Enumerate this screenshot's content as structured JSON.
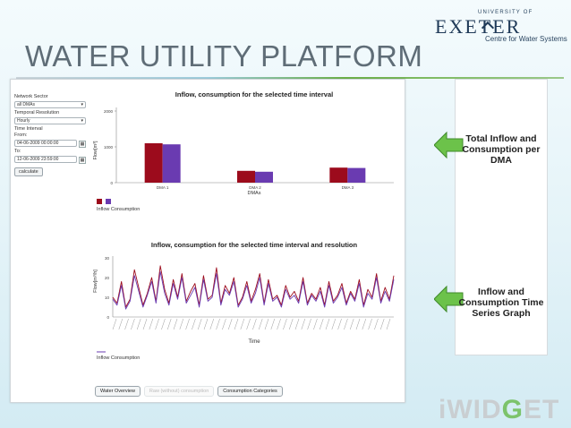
{
  "slide": {
    "title": "WATER UTILITY PLATFORM"
  },
  "logo": {
    "university": "UNIVERSITY OF",
    "name": "EXETER",
    "unit": "Centre for Water Systems"
  },
  "sidebar": {
    "network_sector_label": "Network Sector",
    "network_sector_value": "all DMAs",
    "temporal_resolution_label": "Temporal Resolution",
    "temporal_resolution_value": "Hourly",
    "time_interval_label": "Time Interval",
    "from_label": "From:",
    "from_value": "04-06-2009 00:00:00",
    "to_label": "To:",
    "to_value": "12-06-2009 23:59:00",
    "calculate_label": "calculate"
  },
  "chart_data": [
    {
      "type": "bar",
      "title": "Inflow, consumption for the selected time interval",
      "categories": [
        "DMA 1",
        "DMA 2",
        "DMA 3"
      ],
      "series": [
        {
          "name": "Inflow",
          "values": [
            1100,
            330,
            420
          ],
          "color": "#9c0b1c"
        },
        {
          "name": "Consumption",
          "values": [
            1070,
            305,
            410
          ],
          "color": "#6a3bb1"
        }
      ],
      "xlabel": "DMAs",
      "ylabel": "Flow[m³]",
      "ylim": [
        0,
        2000
      ],
      "yticks": [
        "2000",
        "1000",
        "0"
      ],
      "legend": "bottom-left"
    },
    {
      "type": "line",
      "title": "Inflow, consumption for the selected time interval and resolution",
      "xlabel": "Time",
      "ylabel": "Flow[m³/h]",
      "ylim": [
        0,
        30
      ],
      "yticks": [
        "30",
        "20",
        "10",
        "0"
      ],
      "legend": "bottom-left",
      "series": [
        {
          "name": "Inflow",
          "color": "#9c0b1c",
          "values": [
            10,
            7,
            18,
            5,
            9,
            24,
            15,
            6,
            12,
            20,
            8,
            26,
            14,
            7,
            19,
            10,
            22,
            8,
            13,
            17,
            6,
            21,
            9,
            11,
            25,
            7,
            16,
            12,
            20,
            6,
            10,
            18,
            8,
            14,
            22,
            7,
            19,
            9,
            11,
            6,
            16,
            10,
            13,
            8,
            20,
            7,
            12,
            9,
            15,
            6,
            18,
            8,
            11,
            17,
            7,
            13,
            9,
            19,
            6,
            14,
            10,
            22,
            8,
            15,
            9,
            21
          ]
        },
        {
          "name": "Consumption",
          "color": "#6a3bb1",
          "values": [
            9,
            6,
            16,
            4,
            8,
            21,
            13,
            5,
            11,
            18,
            7,
            23,
            12,
            6,
            17,
            9,
            20,
            7,
            11,
            15,
            5,
            19,
            8,
            10,
            22,
            6,
            14,
            11,
            18,
            5,
            9,
            16,
            7,
            12,
            20,
            6,
            17,
            8,
            10,
            5,
            14,
            9,
            11,
            7,
            18,
            6,
            11,
            8,
            13,
            5,
            16,
            7,
            10,
            15,
            6,
            12,
            8,
            17,
            5,
            12,
            9,
            20,
            7,
            13,
            8,
            19
          ]
        }
      ]
    }
  ],
  "chart2_legend": {
    "consumption": "Inflow Consumption"
  },
  "tabs": {
    "water_overview": "Water Overview",
    "raw_consumption": "Raw (without) consumption",
    "consumption_categories": "Consumption Categories"
  },
  "notes": {
    "note1": "Total Inflow and Consumption per DMA",
    "note2": "Inflow and Consumption Time Series Graph"
  },
  "brand": {
    "before": "iWID",
    "drop": "G",
    "after": "ET"
  }
}
